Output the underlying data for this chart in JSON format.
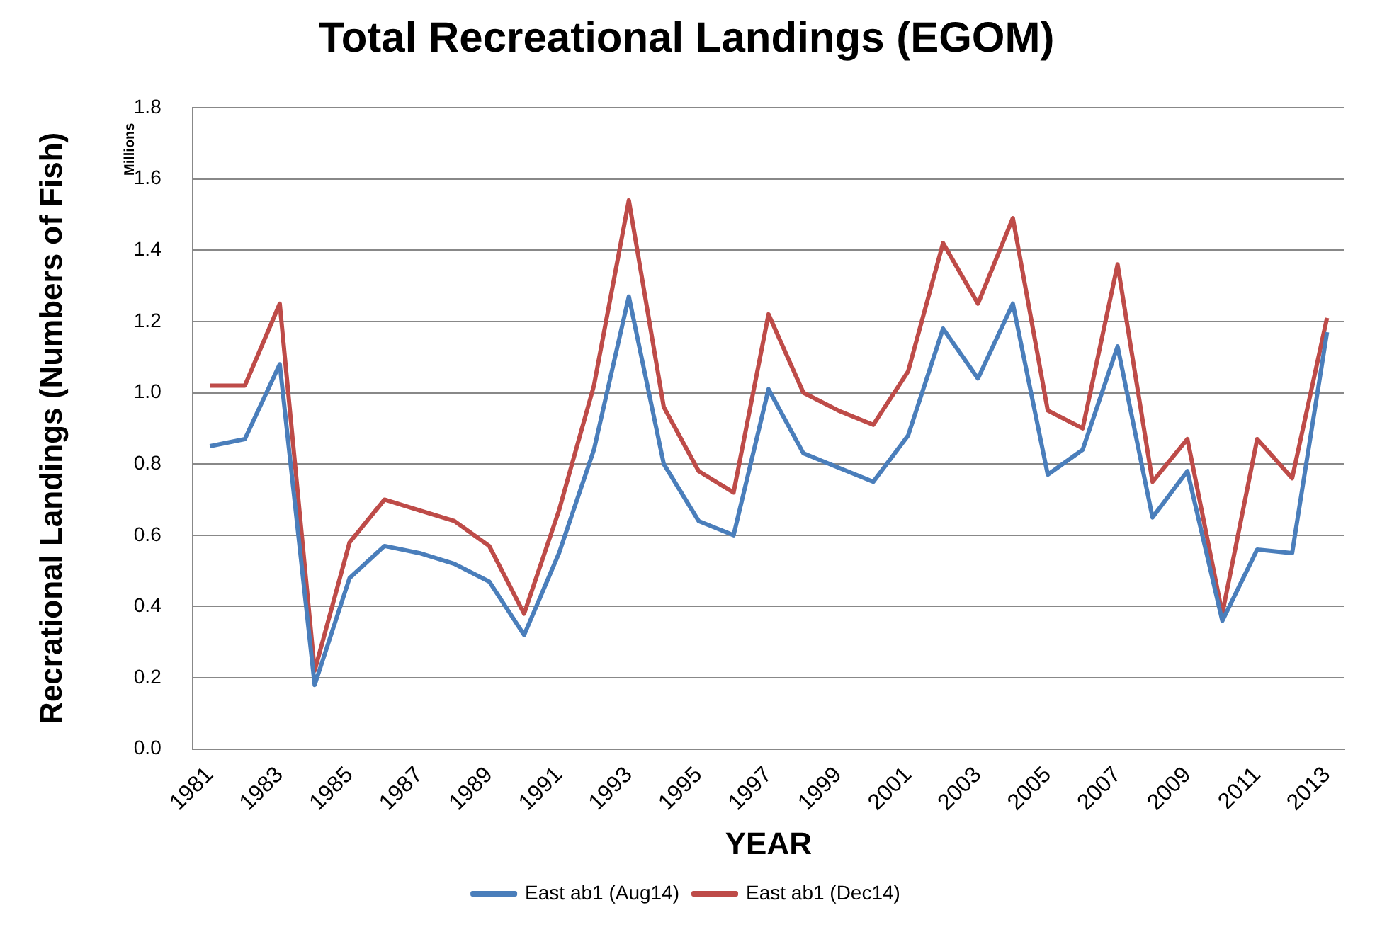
{
  "chart_data": {
    "type": "line",
    "title": "Total Recreational Landings (EGOM)",
    "xlabel": "YEAR",
    "ylabel": "Recrational Landings (Numbers of Fish)",
    "annotations": [
      "Millions"
    ],
    "categories": [
      "1981",
      null,
      "1983",
      null,
      "1985",
      null,
      "1987",
      null,
      "1989",
      null,
      "1991",
      null,
      "1993",
      null,
      "1995",
      null,
      "1997",
      null,
      "1999",
      null,
      "2001",
      null,
      "2003",
      null,
      "2005",
      null,
      "2007",
      null,
      "2009",
      null,
      "2011",
      null,
      "2013"
    ],
    "series": [
      {
        "name": "East ab1 (Aug14)",
        "color": "#4a7ebb",
        "values": [
          0.85,
          0.87,
          1.08,
          0.18,
          0.48,
          0.57,
          0.55,
          0.52,
          0.47,
          0.32,
          0.55,
          0.84,
          1.27,
          0.8,
          0.64,
          0.6,
          1.01,
          0.83,
          0.79,
          0.75,
          0.88,
          1.18,
          1.04,
          1.25,
          0.77,
          0.84,
          1.13,
          0.65,
          0.78,
          0.36,
          0.56,
          0.55,
          1.17
        ]
      },
      {
        "name": "East ab1 (Dec14)",
        "color": "#be4b48",
        "values": [
          1.02,
          1.02,
          1.25,
          0.22,
          0.58,
          0.7,
          0.67,
          0.64,
          0.57,
          0.38,
          0.67,
          1.02,
          1.54,
          0.96,
          0.78,
          0.72,
          1.22,
          1.0,
          0.95,
          0.91,
          1.06,
          1.42,
          1.25,
          1.49,
          0.95,
          0.9,
          1.36,
          0.75,
          0.87,
          0.38,
          0.87,
          0.76,
          1.21
        ]
      }
    ],
    "ylim": [
      0,
      1.8
    ],
    "yticks": [
      {
        "value": 0,
        "label": "0.0"
      },
      {
        "value": 0.2,
        "label": "0.2"
      },
      {
        "value": 0.4,
        "label": "0.4"
      },
      {
        "value": 0.6,
        "label": "0.6"
      },
      {
        "value": 0.8,
        "label": "0.8"
      },
      {
        "value": 1,
        "label": "1.0"
      },
      {
        "value": 1.2,
        "label": "1.2"
      },
      {
        "value": 1.4,
        "label": "1.4"
      },
      {
        "value": 1.6,
        "label": "1.6"
      },
      {
        "value": 1.8,
        "label": "1.8"
      }
    ],
    "grid": "y",
    "legend": "bottom",
    "marker": "none",
    "line_style": "solid"
  }
}
